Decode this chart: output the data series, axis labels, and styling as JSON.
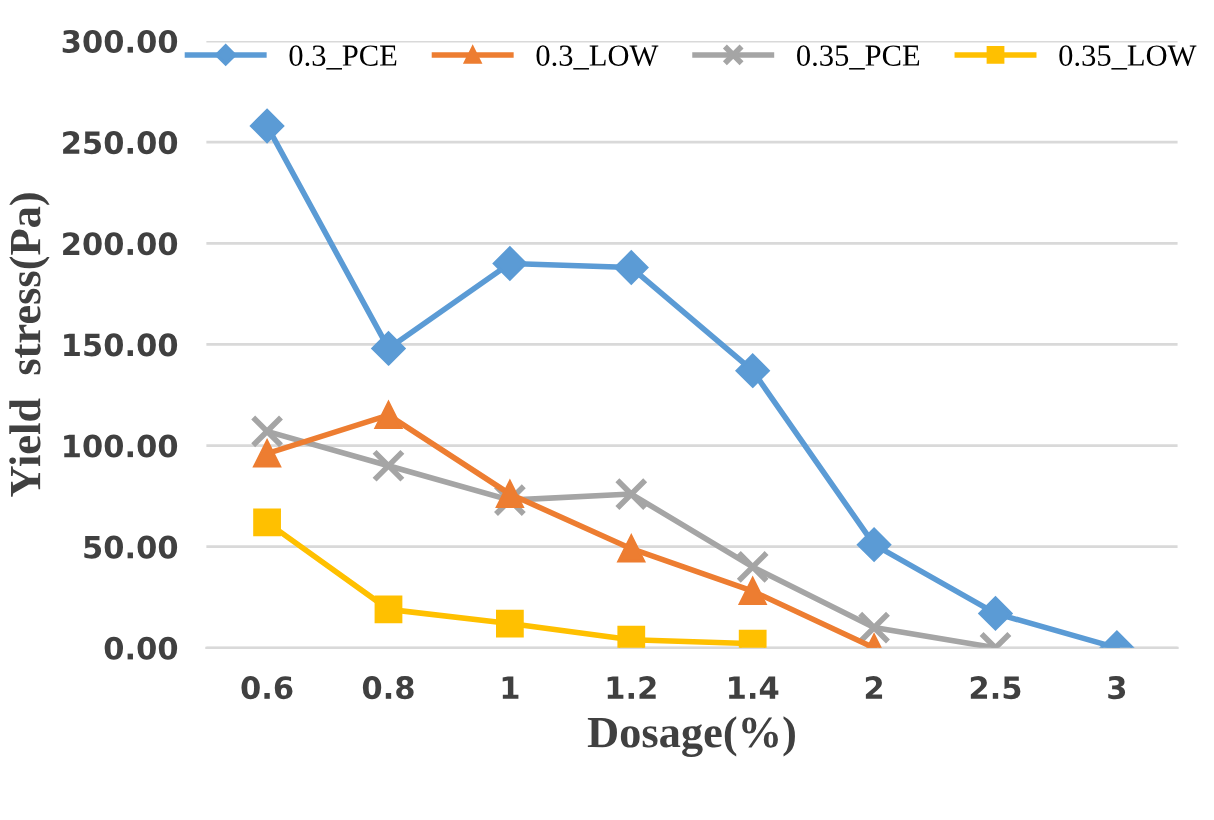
{
  "chart_data": {
    "type": "line",
    "xlabel": "Dosage(%)",
    "ylabel": "Yield  stress(Pa)",
    "categories": [
      "0.6",
      "0.8",
      "1",
      "1.2",
      "1.4",
      "2",
      "2.5",
      "3"
    ],
    "series": [
      {
        "name": "0.3_PCE",
        "color": "#5b9bd5",
        "marker": "diamond",
        "values": [
          258,
          148,
          190,
          188,
          137,
          51,
          17,
          0
        ]
      },
      {
        "name": "0.3_LOW",
        "color": "#ed7d31",
        "marker": "triangle",
        "values": [
          96,
          115,
          76,
          49,
          28,
          0,
          null,
          null
        ]
      },
      {
        "name": "0.35_PCE",
        "color": "#a5a5a5",
        "marker": "cross",
        "values": [
          107,
          90,
          73,
          76,
          40,
          10,
          0,
          null
        ]
      },
      {
        "name": "0.35_LOW",
        "color": "#ffc000",
        "marker": "square",
        "values": [
          62,
          19,
          12,
          4,
          2,
          null,
          null,
          null
        ]
      }
    ],
    "ylim": [
      0,
      300
    ],
    "yticks": [
      {
        "value": 0,
        "label": "0.00"
      },
      {
        "value": 50,
        "label": "50.00"
      },
      {
        "value": 100,
        "label": "100.00"
      },
      {
        "value": 150,
        "label": "150.00"
      },
      {
        "value": 200,
        "label": "200.00"
      },
      {
        "value": 250,
        "label": "250.00"
      },
      {
        "value": 300,
        "label": "300.00"
      }
    ],
    "grid": "y",
    "legend": "top"
  }
}
